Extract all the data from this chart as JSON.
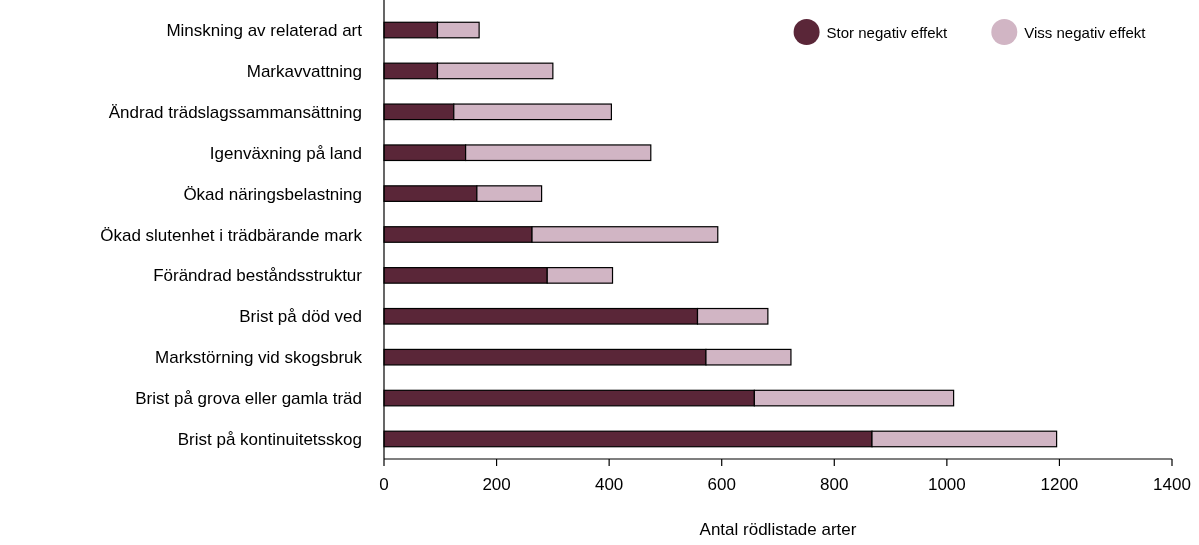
{
  "chart_data": {
    "type": "bar",
    "orientation": "horizontal",
    "stacked": true,
    "xlabel": "Antal rödlistade arter",
    "categories": [
      "Minskning av relaterad art",
      "Markavvattning",
      "Ändrad trädslagssammansättning",
      "Igenväxning på land",
      "Ökad näringsbelastning",
      "Ökad slutenhet i trädbärande mark",
      "Förändrad beståndsstruktur",
      "Brist på död ved",
      "Markstörning vid skogsbruk",
      "Brist på grova eller gamla träd",
      "Brist på kontinuitetsskog"
    ],
    "series": [
      {
        "name": "Stor negativ effekt",
        "color": "#5a2638",
        "values": [
          95,
          95,
          124,
          145,
          165,
          263,
          290,
          557,
          572,
          658,
          867
        ]
      },
      {
        "name": "Viss negativ effekt",
        "color": "#d1b5c4",
        "values": [
          74,
          205,
          280,
          329,
          115,
          330,
          116,
          125,
          151,
          354,
          328
        ]
      }
    ],
    "xlim": [
      0,
      1400
    ],
    "xticks": [
      0,
      200,
      400,
      600,
      800,
      1000,
      1200,
      1400
    ],
    "grid": false,
    "legend": "top right"
  }
}
